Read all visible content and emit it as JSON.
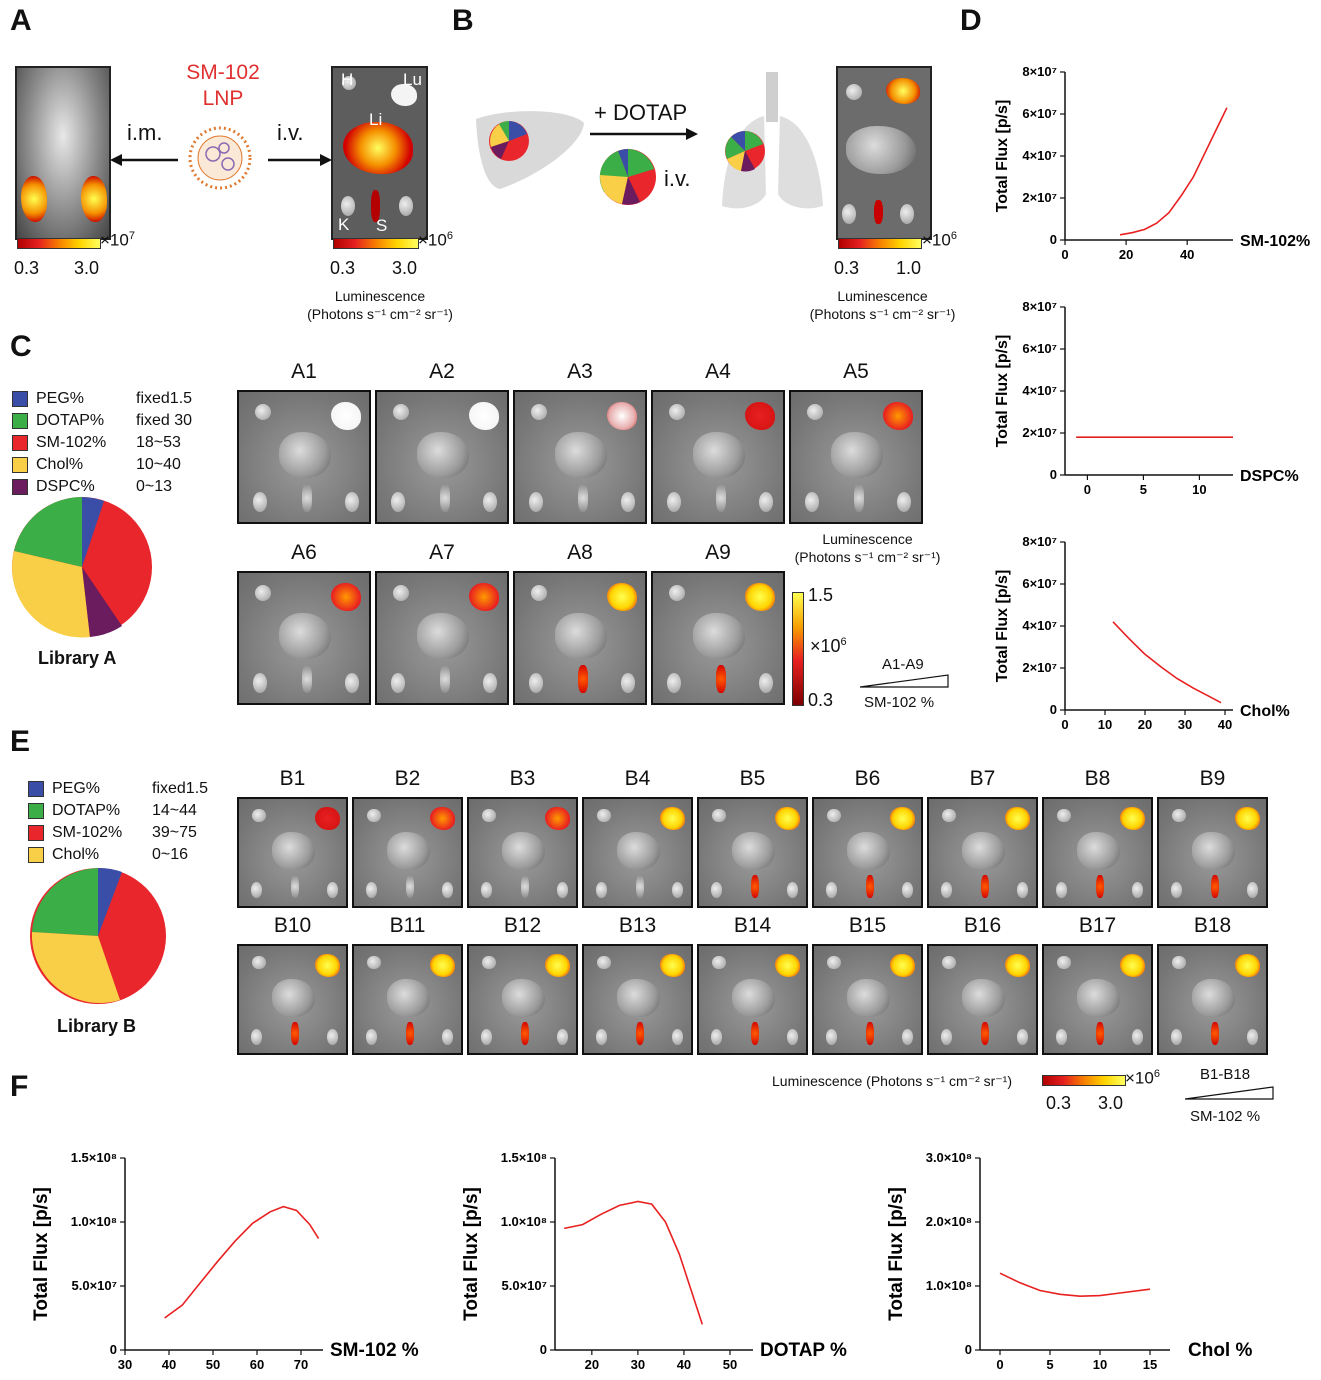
{
  "panels": {
    "A": "A",
    "B": "B",
    "C": "C",
    "D": "D",
    "E": "E",
    "F": "F"
  },
  "panelA": {
    "lnp_name": "SM-102",
    "lnp_sub": "LNP",
    "route_im": "i.m.",
    "route_iv": "i.v.",
    "organs": {
      "H": "H",
      "Lu": "Lu",
      "Li": "Li",
      "K": "K",
      "S": "S"
    },
    "scale1": {
      "mult": "×10",
      "exp": "7",
      "min": "0.3",
      "max": "3.0"
    },
    "scale2": {
      "mult": "×10",
      "exp": "6",
      "min": "0.3",
      "max": "3.0"
    },
    "lum_label": "Luminescence",
    "lum_units": "(Photons s⁻¹ cm⁻² sr⁻¹)"
  },
  "panelB": {
    "dotap": "+ DOTAP",
    "route": "i.v.",
    "scale": {
      "mult": "×10",
      "exp": "6",
      "min": "0.3",
      "max": "1.0"
    },
    "lum_label": "Luminescence",
    "lum_units": "(Photons s⁻¹ cm⁻² sr⁻¹)"
  },
  "libraryA": {
    "title": "Library A",
    "legend": [
      {
        "name": "PEG%",
        "range": "fixed1.5",
        "color": "#3a4ea8"
      },
      {
        "name": "DOTAP%",
        "range": "fixed 30",
        "color": "#3cae48"
      },
      {
        "name": "SM-102%",
        "range": "18~53",
        "color": "#e8262c"
      },
      {
        "name": "Chol%",
        "range": "10~40",
        "color": "#f8cf46"
      },
      {
        "name": "DSPC%",
        "range": "0~13",
        "color": "#6b1c5e"
      }
    ],
    "tiles": [
      "A1",
      "A2",
      "A3",
      "A4",
      "A5",
      "A6",
      "A7",
      "A8",
      "A9"
    ],
    "lum_label": "Luminescence",
    "lum_units": "(Photons s⁻¹ cm⁻² sr⁻¹)",
    "scale": {
      "max": "1.5",
      "mult": "×10",
      "exp": "6",
      "min": "0.3"
    },
    "range_label": "A1-A9",
    "range_axis": "SM-102 %"
  },
  "libraryB": {
    "title": "Library B",
    "legend": [
      {
        "name": "PEG%",
        "range": "fixed1.5",
        "color": "#3a4ea8"
      },
      {
        "name": "DOTAP%",
        "range": "14~44",
        "color": "#3cae48"
      },
      {
        "name": "SM-102%",
        "range": "39~75",
        "color": "#e8262c"
      },
      {
        "name": "Chol%",
        "range": "0~16",
        "color": "#f8cf46"
      }
    ],
    "tiles": [
      "B1",
      "B2",
      "B3",
      "B4",
      "B5",
      "B6",
      "B7",
      "B8",
      "B9",
      "B10",
      "B11",
      "B12",
      "B13",
      "B14",
      "B15",
      "B16",
      "B17",
      "B18"
    ],
    "lum_text": "Luminescence (Photons s⁻¹ cm⁻² sr⁻¹)",
    "scale": {
      "mult": "×10",
      "exp": "6",
      "min": "0.3",
      "max": "3.0"
    },
    "range_label": "B1-B18",
    "range_axis": "SM-102 %"
  },
  "chart_data": [
    {
      "id": "D1",
      "type": "line",
      "ylabel": "Total Flux [p/s]",
      "xlabel": "SM-102%",
      "xlim": [
        0,
        55
      ],
      "ylim": [
        0,
        80000000.0
      ],
      "xticks": [
        0,
        20,
        40
      ],
      "yticks": [
        "0",
        "2×10⁷",
        "4×10⁷",
        "6×10⁷",
        "8×10⁷"
      ],
      "ytickvals": [
        0,
        20000000.0,
        40000000.0,
        60000000.0,
        80000000.0
      ],
      "x": [
        18,
        22,
        26,
        30,
        34,
        38,
        42,
        46,
        50,
        53
      ],
      "y": [
        2500000.0,
        3500000.0,
        5000000.0,
        8000000.0,
        13000000.0,
        21000000.0,
        30000000.0,
        42000000.0,
        54000000.0,
        63000000.0
      ]
    },
    {
      "id": "D2",
      "type": "line",
      "ylabel": "Total Flux [p/s]",
      "xlabel": "DSPC%",
      "xlim": [
        -2,
        13
      ],
      "ylim": [
        0,
        80000000.0
      ],
      "xticks": [
        0,
        5,
        10
      ],
      "yticks": [
        "0",
        "2×10⁷",
        "4×10⁷",
        "6×10⁷",
        "8×10⁷"
      ],
      "ytickvals": [
        0,
        20000000.0,
        40000000.0,
        60000000.0,
        80000000.0
      ],
      "x": [
        -1,
        13
      ],
      "y": [
        18000000.0,
        18000000.0
      ]
    },
    {
      "id": "D3",
      "type": "line",
      "ylabel": "Total Flux [p/s]",
      "xlabel": "Chol%",
      "xlim": [
        0,
        42
      ],
      "ylim": [
        0,
        80000000.0
      ],
      "xticks": [
        0,
        10,
        20,
        30,
        40
      ],
      "yticks": [
        "0",
        "2×10⁷",
        "4×10⁷",
        "6×10⁷",
        "8×10⁷"
      ],
      "ytickvals": [
        0,
        20000000.0,
        40000000.0,
        60000000.0,
        80000000.0
      ],
      "x": [
        12,
        16,
        20,
        24,
        28,
        32,
        36,
        39
      ],
      "y": [
        42000000.0,
        34000000.0,
        26500000.0,
        20500000.0,
        15000000.0,
        10500000.0,
        6500000.0,
        3500000.0
      ]
    },
    {
      "id": "F1",
      "type": "line",
      "ylabel": "Total Flux [p/s]",
      "xlabel": "SM-102 %",
      "xlim": [
        30,
        75
      ],
      "ylim": [
        0,
        150000000.0
      ],
      "xticks": [
        30,
        40,
        50,
        60,
        70
      ],
      "yticks": [
        "0",
        "5.0×10⁷",
        "1.0×10⁸",
        "1.5×10⁸"
      ],
      "ytickvals": [
        0,
        50000000.0,
        100000000.0,
        150000000.0
      ],
      "x": [
        39,
        43,
        47,
        51,
        55,
        59,
        63,
        66,
        69,
        72,
        74
      ],
      "y": [
        25000000.0,
        35000000.0,
        52000000.0,
        69000000.0,
        85000000.0,
        99000000.0,
        108000000.0,
        112000000.0,
        109000000.0,
        98000000.0,
        87000000.0
      ]
    },
    {
      "id": "F2",
      "type": "line",
      "ylabel": "Total Flux [p/s]",
      "xlabel": "DOTAP %",
      "xlim": [
        12,
        55
      ],
      "ylim": [
        0,
        150000000.0
      ],
      "xticks": [
        20,
        30,
        40,
        50
      ],
      "yticks": [
        "0",
        "5.0×10⁷",
        "1.0×10⁸",
        "1.5×10⁸"
      ],
      "ytickvals": [
        0,
        50000000.0,
        100000000.0,
        150000000.0
      ],
      "x": [
        14,
        18,
        22,
        26,
        30,
        33,
        36,
        39,
        42,
        44
      ],
      "y": [
        95000000.0,
        98000000.0,
        106000000.0,
        113000000.0,
        116000000.0,
        114000000.0,
        100000000.0,
        75000000.0,
        42000000.0,
        20000000.0
      ]
    },
    {
      "id": "F3",
      "type": "line",
      "ylabel": "Total Flux [p/s]",
      "xlabel": "Chol %",
      "xlim": [
        -2,
        17
      ],
      "ylim": [
        0,
        300000000.0
      ],
      "xticks": [
        0,
        5,
        10,
        15
      ],
      "yticks": [
        "0",
        "1.0×10⁸",
        "2.0×10⁸",
        "3.0×10⁸"
      ],
      "ytickvals": [
        0,
        100000000.0,
        200000000.0,
        300000000.0
      ],
      "x": [
        0,
        2,
        4,
        6,
        8,
        10,
        12,
        15
      ],
      "y": [
        120000000.0,
        105000000.0,
        93000000.0,
        87000000.0,
        84000000.0,
        85000000.0,
        89000000.0,
        95000000.0
      ]
    }
  ]
}
